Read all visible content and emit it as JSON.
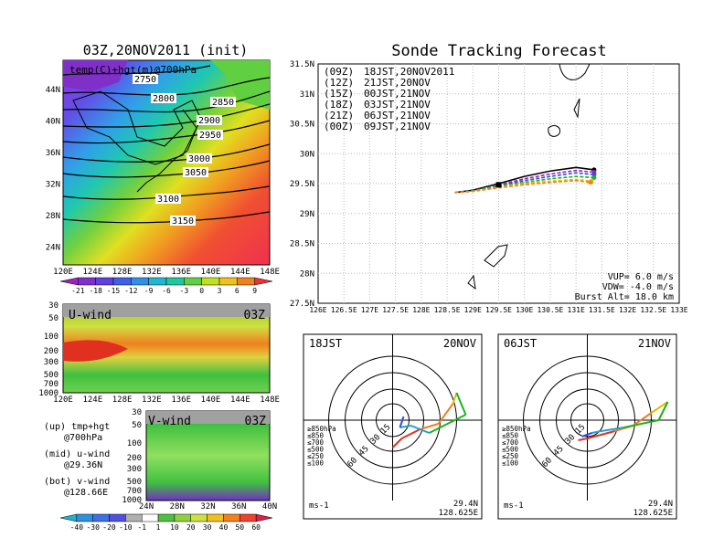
{
  "title_left": "03Z,20NOV2011 (init)",
  "title_right": "Sonde Tracking Forecast",
  "map_label": "temp(C)+hgt(m)@700hPa",
  "contours": [
    "2750",
    "2800",
    "2850",
    "2900",
    "2950",
    "3000",
    "3050",
    "3100",
    "3150"
  ],
  "colorbar_temp": [
    "-21",
    "-18",
    "-15",
    "-12",
    "-9",
    "-6",
    "-3",
    "0",
    "3",
    "6",
    "9"
  ],
  "colorbar_wind": [
    "-40",
    "-30",
    "-20",
    "-10",
    "-1",
    "1",
    "10",
    "20",
    "30",
    "40",
    "50",
    "60"
  ],
  "lon_ticks_map": [
    "120E",
    "124E",
    "128E",
    "132E",
    "136E",
    "140E",
    "144E",
    "148E"
  ],
  "lat_ticks_map": [
    "44N",
    "40N",
    "36N",
    "32N",
    "28N",
    "24N"
  ],
  "uwind": {
    "label": "U-wind",
    "time": "03Z",
    "p_ticks": [
      "30",
      "50",
      "100",
      "200",
      "300",
      "500",
      "700",
      "1000"
    ],
    "x_ticks": [
      "120E",
      "124E",
      "128E",
      "132E",
      "136E",
      "140E",
      "144E",
      "148E"
    ]
  },
  "vwind": {
    "label": "V-wind",
    "time": "03Z",
    "p_ticks": [
      "30",
      "50",
      "100",
      "200",
      "300",
      "500",
      "700",
      "1000"
    ],
    "x_ticks": [
      "24N",
      "28N",
      "32N",
      "36N",
      "40N"
    ]
  },
  "notes": [
    {
      "a": "(up) tmp+hgt",
      "b": "@700hPa"
    },
    {
      "a": "(mid) u-wind",
      "b": "@29.36N"
    },
    {
      "a": "(bot) v-wind",
      "b": "@128.66E"
    }
  ],
  "legend": [
    {
      "z": "(09Z)",
      "text": "18JST,20NOV2011",
      "color": "#000000"
    },
    {
      "z": "(12Z)",
      "text": "21JST,20NOV",
      "color": "#a020c0"
    },
    {
      "z": "(15Z)",
      "text": "00JST,21NOV",
      "color": "#3050e0"
    },
    {
      "z": "(18Z)",
      "text": "03JST,21NOV",
      "color": "#20b020"
    },
    {
      "z": "(21Z)",
      "text": "06JST,21NOV",
      "color": "#e0c000"
    },
    {
      "z": "(00Z)",
      "text": "09JST,21NOV",
      "color": "#f08020"
    }
  ],
  "params": {
    "vup": "VUP= 6.0 m/s",
    "vdw": "VDW= -4.0 m/s",
    "burst": "Burst Alt= 18.0 km"
  },
  "polar_left": {
    "time": "18JST",
    "date": "20NOV",
    "lat": "29.4N",
    "lon": "128.625E",
    "unit": "ms-1"
  },
  "polar_right": {
    "time": "06JST",
    "date": "21NOV",
    "lat": "29.4N",
    "lon": "128.625E",
    "unit": "ms-1"
  },
  "polar_rings": [
    "15",
    "30",
    "45",
    "60"
  ],
  "polar_legend": [
    "≥850hPa",
    "≤850",
    "≤700",
    "≤500",
    "≤250",
    "≤100"
  ],
  "chart_data": {
    "type": "line",
    "title": "Sonde Tracking Forecast",
    "xlim": [
      126,
      133
    ],
    "ylim": [
      27.5,
      31.5
    ],
    "x_ticks": [
      "126E",
      "126.5E",
      "127E",
      "127.5E",
      "128E",
      "128.5E",
      "129E",
      "129.5E",
      "130E",
      "130.5E",
      "131E",
      "131.5E",
      "132E",
      "132.5E",
      "133E"
    ],
    "y_ticks": [
      "27.5N",
      "28N",
      "28.5N",
      "29N",
      "29.5N",
      "30N",
      "30.5N",
      "31N",
      "31.5N"
    ],
    "series": [
      {
        "name": "(09Z) 18JST,20NOV2011",
        "x": [
          128.65,
          129.0,
          129.5,
          130.0,
          130.5,
          131.0,
          131.35
        ],
        "y": [
          29.35,
          29.39,
          29.5,
          29.62,
          29.71,
          29.77,
          29.73
        ]
      },
      {
        "name": "(12Z) 21JST,20NOV",
        "x": [
          128.65,
          129.0,
          129.5,
          130.0,
          130.5,
          131.0,
          131.35
        ],
        "y": [
          29.35,
          29.38,
          29.48,
          29.58,
          29.66,
          29.72,
          29.69
        ]
      },
      {
        "name": "(15Z) 00JST,21NOV",
        "x": [
          128.65,
          129.0,
          129.5,
          130.0,
          130.5,
          131.0,
          131.35
        ],
        "y": [
          29.35,
          29.38,
          29.47,
          29.55,
          29.62,
          29.68,
          29.65
        ]
      },
      {
        "name": "(18Z) 03JST,21NOV",
        "x": [
          128.65,
          129.0,
          129.5,
          130.0,
          130.5,
          131.0,
          131.35
        ],
        "y": [
          29.35,
          29.38,
          29.46,
          29.52,
          29.58,
          29.62,
          29.6
        ]
      },
      {
        "name": "(21Z) 06JST,21NOV",
        "x": [
          128.65,
          129.0,
          129.5,
          130.0,
          130.5,
          131.0,
          131.3
        ],
        "y": [
          29.35,
          29.37,
          29.44,
          29.5,
          29.54,
          29.57,
          29.54
        ]
      },
      {
        "name": "(00Z) 09JST,21NOV",
        "x": [
          128.65,
          129.0,
          129.5,
          130.0,
          130.5,
          131.0,
          131.28
        ],
        "y": [
          29.35,
          29.37,
          29.43,
          29.48,
          29.52,
          29.55,
          29.52
        ]
      }
    ]
  }
}
